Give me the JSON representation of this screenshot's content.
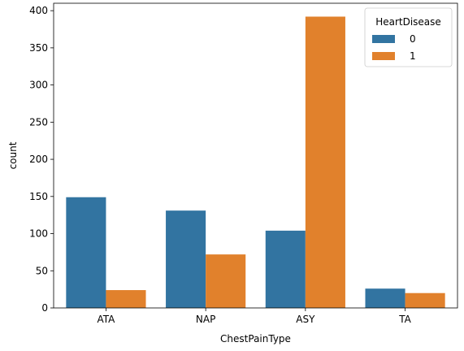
{
  "chart_data": {
    "type": "bar",
    "xlabel": "ChestPainType",
    "ylabel": "count",
    "categories": [
      "ATA",
      "NAP",
      "ASY",
      "TA"
    ],
    "series": [
      {
        "name": "0",
        "color": "#3274a1",
        "values": [
          149,
          131,
          104,
          26
        ]
      },
      {
        "name": "1",
        "color": "#e1812c",
        "values": [
          24,
          72,
          392,
          20
        ]
      }
    ],
    "ylim": [
      0,
      410
    ],
    "yticks": [
      0,
      50,
      100,
      150,
      200,
      250,
      300,
      350,
      400
    ],
    "grid": false,
    "legend": {
      "title": "HeartDisease",
      "position": "top-right"
    }
  }
}
